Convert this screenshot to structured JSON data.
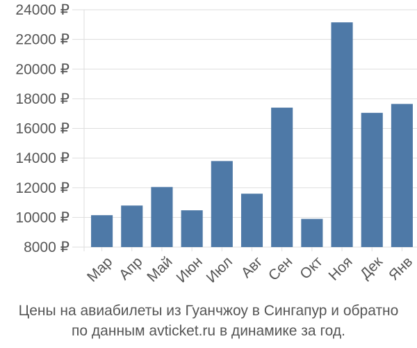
{
  "chart_data": {
    "type": "bar",
    "categories": [
      "Мар",
      "Апр",
      "Май",
      "Июн",
      "Июл",
      "Авг",
      "Сен",
      "Окт",
      "Ноя",
      "Дек",
      "Янв"
    ],
    "values": [
      10150,
      10800,
      12050,
      10480,
      13800,
      11600,
      17400,
      9900,
      23150,
      17050,
      17650
    ],
    "ylim": [
      8000,
      24000
    ],
    "yticks": [
      8000,
      10000,
      12000,
      14000,
      16000,
      18000,
      20000,
      22000,
      24000
    ],
    "ytick_labels": [
      "8000 ₽",
      "10000 ₽",
      "12000 ₽",
      "14000 ₽",
      "16000 ₽",
      "18000 ₽",
      "20000 ₽",
      "22000 ₽",
      "24000 ₽"
    ],
    "grid": true,
    "colors": {
      "bar": "#4e79a7",
      "grid": "#dddddd",
      "axis": "#888888",
      "text": "#555555"
    }
  },
  "caption": {
    "line1": "Цены на авиабилеты из Гуанчжоу в Сингапур и обратно",
    "line2": "по данным avticket.ru в динамике за год."
  }
}
